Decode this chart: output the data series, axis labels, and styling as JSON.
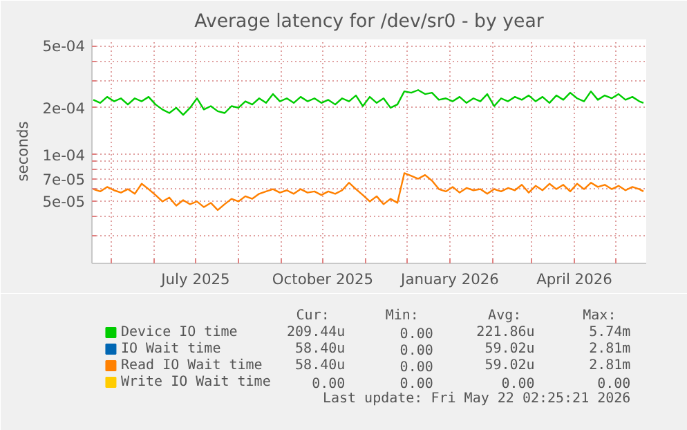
{
  "chart_data": {
    "type": "line",
    "title": "Average latency for /dev/sr0 - by year",
    "ylabel": "seconds",
    "log": "y",
    "grid": true,
    "legend": "bottom",
    "xlim": [
      "2025-04-17",
      "2026-05-23"
    ],
    "ylim": [
      2e-05,
      0.00055
    ],
    "xticks": [
      {
        "value": "2025-05-01",
        "label": null
      },
      {
        "value": "2025-06-01",
        "label": null
      },
      {
        "value": "2025-07-01",
        "label": "July 2025"
      },
      {
        "value": "2025-08-01",
        "label": null
      },
      {
        "value": "2025-09-01",
        "label": null
      },
      {
        "value": "2025-10-01",
        "label": "October 2025"
      },
      {
        "value": "2025-11-01",
        "label": null
      },
      {
        "value": "2025-12-01",
        "label": null
      },
      {
        "value": "2026-01-01",
        "label": "January 2026"
      },
      {
        "value": "2026-02-01",
        "label": null
      },
      {
        "value": "2026-03-01",
        "label": null
      },
      {
        "value": "2026-04-01",
        "label": "April 2026"
      },
      {
        "value": "2026-05-01",
        "label": null
      }
    ],
    "yticks": [
      {
        "value": 3e-05,
        "label": null
      },
      {
        "value": 4e-05,
        "label": null
      },
      {
        "value": 5e-05,
        "label": "5e-05"
      },
      {
        "value": 6e-05,
        "label": null
      },
      {
        "value": 7e-05,
        "label": "7e-05"
      },
      {
        "value": 8e-05,
        "label": null
      },
      {
        "value": 9e-05,
        "label": null
      },
      {
        "value": 0.0001,
        "label": "1e-04"
      },
      {
        "value": 0.0002,
        "label": "2e-04"
      },
      {
        "value": 0.0003,
        "label": null
      },
      {
        "value": 0.0004,
        "label": null
      },
      {
        "value": 0.0005,
        "label": "5e-04"
      }
    ],
    "x": [
      "2025-04-18",
      "2025-04-23",
      "2025-04-28",
      "2025-05-03",
      "2025-05-08",
      "2025-05-13",
      "2025-05-18",
      "2025-05-23",
      "2025-05-28",
      "2025-06-02",
      "2025-06-07",
      "2025-06-12",
      "2025-06-17",
      "2025-06-22",
      "2025-06-27",
      "2025-07-02",
      "2025-07-07",
      "2025-07-12",
      "2025-07-17",
      "2025-07-22",
      "2025-07-27",
      "2025-08-01",
      "2025-08-06",
      "2025-08-11",
      "2025-08-16",
      "2025-08-21",
      "2025-08-26",
      "2025-08-31",
      "2025-09-05",
      "2025-09-10",
      "2025-09-15",
      "2025-09-20",
      "2025-09-25",
      "2025-09-30",
      "2025-10-05",
      "2025-10-10",
      "2025-10-15",
      "2025-10-20",
      "2025-10-25",
      "2025-10-30",
      "2025-11-04",
      "2025-11-09",
      "2025-11-14",
      "2025-11-19",
      "2025-11-24",
      "2025-11-29",
      "2025-12-04",
      "2025-12-09",
      "2025-12-14",
      "2025-12-19",
      "2025-12-24",
      "2025-12-29",
      "2026-01-03",
      "2026-01-08",
      "2026-01-13",
      "2026-01-18",
      "2026-01-23",
      "2026-01-28",
      "2026-02-02",
      "2026-02-07",
      "2026-02-12",
      "2026-02-17",
      "2026-02-22",
      "2026-02-27",
      "2026-03-04",
      "2026-03-09",
      "2026-03-14",
      "2026-03-19",
      "2026-03-24",
      "2026-03-29",
      "2026-04-03",
      "2026-04-08",
      "2026-04-13",
      "2026-04-18",
      "2026-04-23",
      "2026-04-28",
      "2026-05-03",
      "2026-05-08",
      "2026-05-13",
      "2026-05-18",
      "2026-05-21"
    ],
    "series": [
      {
        "name": "Device IO time",
        "color": "#00cc00",
        "values": [
          0.000225,
          0.000215,
          0.000235,
          0.00022,
          0.00023,
          0.00021,
          0.00023,
          0.00022,
          0.000235,
          0.00021,
          0.000195,
          0.000185,
          0.0002,
          0.00018,
          0.0002,
          0.00023,
          0.000195,
          0.000205,
          0.00019,
          0.000185,
          0.000205,
          0.0002,
          0.00022,
          0.00021,
          0.00023,
          0.000215,
          0.000245,
          0.00022,
          0.00023,
          0.000215,
          0.000235,
          0.00022,
          0.00023,
          0.000215,
          0.000225,
          0.00021,
          0.00023,
          0.00022,
          0.00024,
          0.000205,
          0.000235,
          0.000215,
          0.00023,
          0.0002,
          0.00021,
          0.000255,
          0.00025,
          0.00026,
          0.000245,
          0.00025,
          0.000225,
          0.00023,
          0.00022,
          0.000235,
          0.000215,
          0.00023,
          0.00022,
          0.000245,
          0.000205,
          0.00023,
          0.00022,
          0.000235,
          0.000225,
          0.00024,
          0.00022,
          0.000235,
          0.000215,
          0.00024,
          0.000225,
          0.00025,
          0.00023,
          0.00022,
          0.000255,
          0.000225,
          0.00024,
          0.00023,
          0.000245,
          0.000225,
          0.000235,
          0.00022,
          0.000215
        ]
      },
      {
        "name": "IO Wait time",
        "color": "#0066b3",
        "values": [
          null,
          null,
          null,
          null,
          null,
          null,
          null,
          null,
          null,
          null,
          null,
          null,
          null,
          null,
          null,
          null,
          null,
          null,
          null,
          null,
          null,
          null,
          null,
          null,
          null,
          null,
          null,
          null,
          null,
          null,
          null,
          null,
          null,
          null,
          null,
          null,
          null,
          null,
          null,
          null,
          null,
          null,
          null,
          null,
          null,
          null,
          null,
          null,
          null,
          null,
          null,
          null,
          null,
          null,
          null,
          null,
          null,
          null,
          null,
          null,
          null,
          null,
          null,
          null,
          null,
          null,
          null,
          null,
          null,
          null,
          null,
          null,
          null,
          null,
          null,
          null,
          null,
          null,
          null,
          null,
          null
        ]
      },
      {
        "name": "Read IO Wait time",
        "color": "#ff8000",
        "values": [
          6e-05,
          5.8e-05,
          6.2e-05,
          5.9e-05,
          5.7e-05,
          6e-05,
          5.6e-05,
          6.5e-05,
          6e-05,
          5.5e-05,
          5e-05,
          5.3e-05,
          4.7e-05,
          5.1e-05,
          4.8e-05,
          5e-05,
          4.6e-05,
          4.9e-05,
          4.4e-05,
          4.8e-05,
          5.2e-05,
          5e-05,
          5.4e-05,
          5.2e-05,
          5.6e-05,
          5.8e-05,
          6e-05,
          5.7e-05,
          5.9e-05,
          5.6e-05,
          6e-05,
          5.7e-05,
          5.8e-05,
          5.5e-05,
          5.8e-05,
          5.6e-05,
          5.9e-05,
          6.6e-05,
          6e-05,
          5.5e-05,
          5e-05,
          5.4e-05,
          4.8e-05,
          5.2e-05,
          4.9e-05,
          7.6e-05,
          7.3e-05,
          7e-05,
          7.4e-05,
          6.8e-05,
          6e-05,
          5.8e-05,
          6.2e-05,
          5.7e-05,
          6.1e-05,
          5.9e-05,
          6e-05,
          5.6e-05,
          6e-05,
          5.8e-05,
          6.1e-05,
          5.9e-05,
          6.4e-05,
          5.7e-05,
          6.3e-05,
          5.9e-05,
          6.5e-05,
          6e-05,
          6.4e-05,
          5.8e-05,
          6.5e-05,
          6e-05,
          6.6e-05,
          6.2e-05,
          6.4e-05,
          6e-05,
          6.3e-05,
          5.9e-05,
          6.2e-05,
          6e-05,
          5.8e-05
        ]
      },
      {
        "name": "Write IO Wait time",
        "color": "#ffcc00",
        "values": [
          null,
          null,
          null,
          null,
          null,
          null,
          null,
          null,
          null,
          null,
          null,
          null,
          null,
          null,
          null,
          null,
          null,
          null,
          null,
          null,
          null,
          null,
          null,
          null,
          null,
          null,
          null,
          null,
          null,
          null,
          null,
          null,
          null,
          null,
          null,
          null,
          null,
          null,
          null,
          null,
          null,
          null,
          null,
          null,
          null,
          null,
          null,
          null,
          null,
          null,
          null,
          null,
          null,
          null,
          null,
          null,
          null,
          null,
          null,
          null,
          null,
          null,
          null,
          null,
          null,
          null,
          null,
          null,
          null,
          null,
          null,
          null,
          null,
          null,
          null,
          null,
          null,
          null,
          null,
          null,
          null
        ]
      }
    ],
    "annotations": [
      "Cur:",
      "Min:",
      "Avg:",
      "Max:",
      "209.44u",
      "0.00",
      "221.86u",
      "5.74m",
      "58.40u",
      "0.00",
      "59.02u",
      "2.81m",
      "58.40u",
      "0.00",
      "59.02u",
      "2.81m",
      "0.00",
      "0.00",
      "0.00",
      "0.00",
      "Last update: Fri May 22 02:25:21 2026"
    ]
  }
}
